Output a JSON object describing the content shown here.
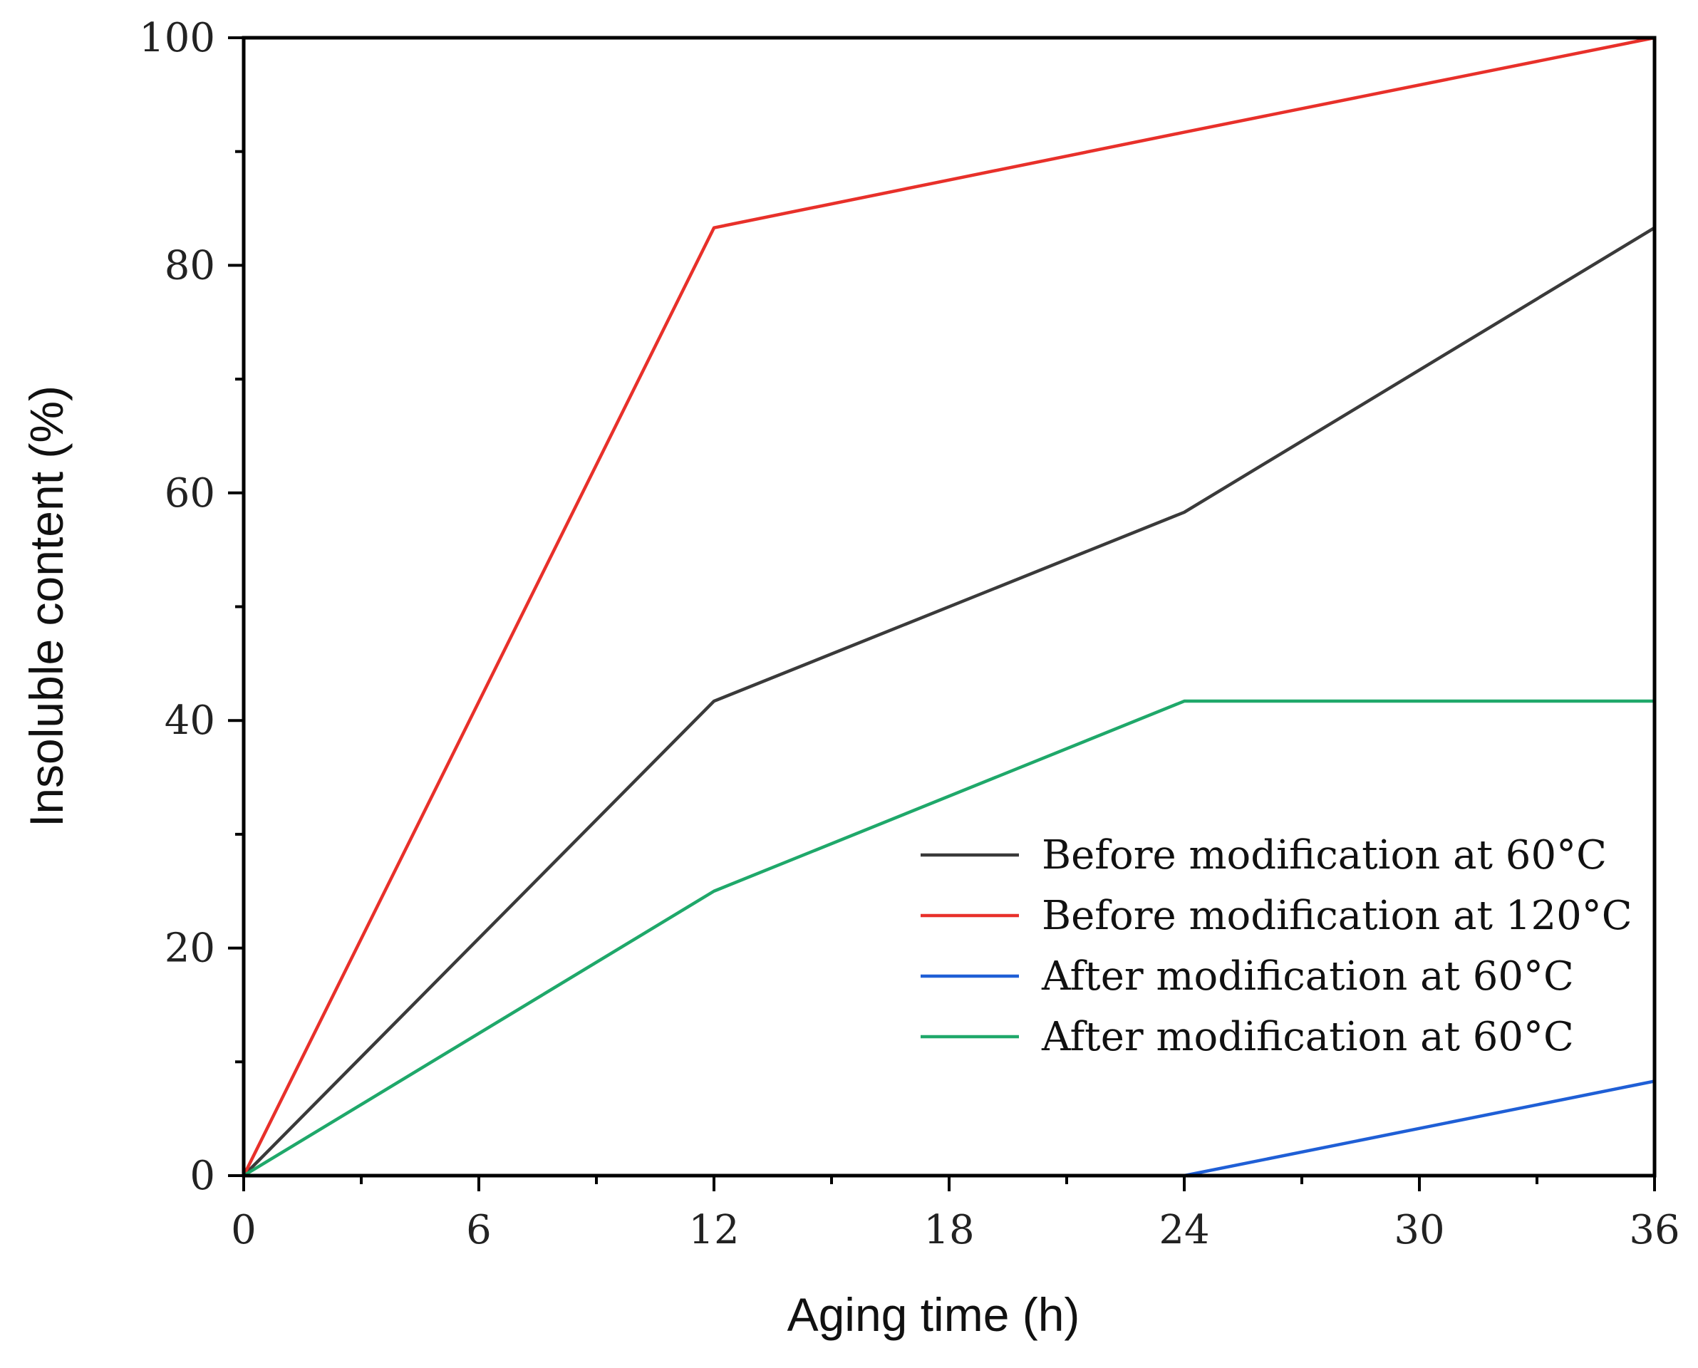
{
  "chart_data": {
    "type": "line",
    "title": "",
    "xlabel": "Aging time (h)",
    "ylabel": "Insoluble content (%)",
    "x": [
      0,
      12,
      24,
      36
    ],
    "xlim": [
      0,
      36
    ],
    "ylim": [
      0,
      100
    ],
    "xticks": [
      0,
      6,
      12,
      18,
      24,
      30,
      36
    ],
    "yticks": [
      0,
      20,
      40,
      60,
      80,
      100
    ],
    "x_minor_step": 3,
    "y_minor_step": 10,
    "legend_position": "bottom-right",
    "grid": false,
    "series": [
      {
        "name": "Before modification at 60°C",
        "color": "#3a3a3a",
        "values": [
          0,
          41.7,
          58.3,
          83.3
        ]
      },
      {
        "name": "Before modification at 120°C",
        "color": "#e8302a",
        "values": [
          0,
          83.3,
          91.7,
          100
        ]
      },
      {
        "name": "After modification at 60°C",
        "color": "#1f5fd6",
        "values": [
          0,
          0,
          0,
          8.3
        ]
      },
      {
        "name": "After modification at 60°C",
        "color": "#1fa86a",
        "values": [
          0,
          25,
          41.7,
          41.7
        ]
      }
    ]
  }
}
